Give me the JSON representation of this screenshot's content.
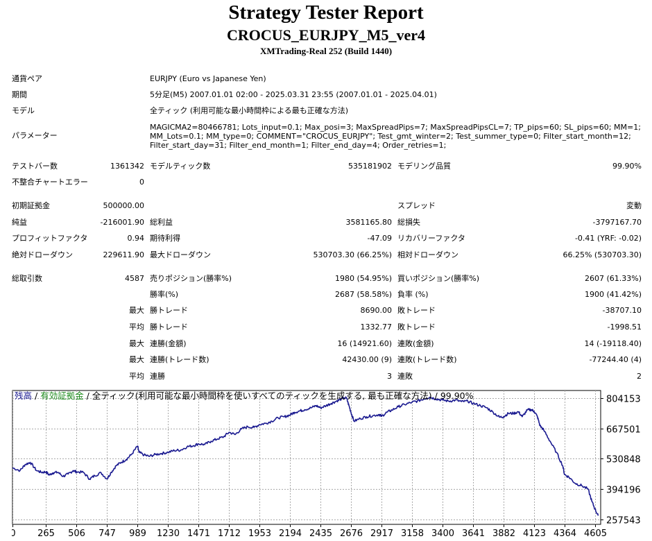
{
  "header": {
    "title": "Strategy Tester Report",
    "subtitle": "CROCUS_EURJPY_M5_ver4",
    "server": "XMTrading-Real 252 (Build 1440)"
  },
  "info": {
    "symbol_label": "通貨ペア",
    "symbol_value": "EURJPY (Euro vs Japanese Yen)",
    "period_label": "期間",
    "period_value": "5分足(M5) 2007.01.01 02:00 - 2025.03.31 23:55 (2007.01.01 - 2025.04.01)",
    "model_label": "モデル",
    "model_value": "全ティック (利用可能な最小時間枠による最も正確な方法)",
    "params_label": "パラメーター",
    "params_value": "MAGICMA2=80466781; Lots_input=0.1; Max_posi=3; MaxSpreadPips=7; MaxSpreadPipsCL=7; TP_pips=60; SL_pips=60; MM=1; MM_Lots=0.1; MM_type=0; COMMENT=\"CROCUS_EURJPY\"; Test_gmt_winter=2; Test_summer_type=0; Filter_start_month=12; Filter_start_day=31; Filter_end_month=1; Filter_end_day=4; Order_retries=1;"
  },
  "stats": {
    "bars_label": "テストバー数",
    "bars_value": "1361342",
    "ticks_label": "モデルティック数",
    "ticks_value": "535181902",
    "quality_label": "モデリング品質",
    "quality_value": "99.90%",
    "mismatch_label": "不整合チャートエラー",
    "mismatch_value": "0",
    "deposit_label": "初期証拠金",
    "deposit_value": "500000.00",
    "spread_label": "スプレッド",
    "spread_value": "変動",
    "net_label": "純益",
    "net_value": "-216001.90",
    "gross_profit_label": "総利益",
    "gross_profit_value": "3581165.80",
    "gross_loss_label": "総損失",
    "gross_loss_value": "-3797167.70",
    "pf_label": "プロフィットファクタ",
    "pf_value": "0.94",
    "payoff_label": "期待利得",
    "payoff_value": "-47.09",
    "recovery_label": "リカバリーファクタ",
    "recovery_value": "-0.41 (YRF: -0.02)",
    "abs_dd_label": "絶対ドローダウン",
    "abs_dd_value": "229611.90",
    "max_dd_label": "最大ドローダウン",
    "max_dd_value": "530703.30 (66.25%)",
    "rel_dd_label": "相対ドローダウン",
    "rel_dd_value": "66.25% (530703.30)",
    "trades_label": "総取引数",
    "trades_value": "4587",
    "short_label": "売りポジション(勝率%)",
    "short_value": "1980 (54.95%)",
    "long_label": "買いポジション(勝率%)",
    "long_value": "2607 (61.33%)",
    "win_rate_label": "勝率(%)",
    "win_rate_value": "2687 (58.58%)",
    "loss_rate_label": "負率 (%)",
    "loss_rate_value": "1900 (41.42%)",
    "max_word": "最大",
    "avg_word": "平均",
    "largest_win_label": "勝トレード",
    "largest_win_value": "8690.00",
    "largest_loss_label": "敗トレード",
    "largest_loss_value": "-38707.10",
    "avg_win_label": "勝トレード",
    "avg_win_value": "1332.77",
    "avg_loss_label": "敗トレード",
    "avg_loss_value": "-1998.51",
    "max_consec_wins_label": "連勝(金額)",
    "max_consec_wins_value": "16 (14921.60)",
    "max_consec_losses_label": "連敗(金額)",
    "max_consec_losses_value": "14 (-19118.40)",
    "max_consec_profit_label": "連勝(トレード数)",
    "max_consec_profit_value": "42430.00 (9)",
    "max_consec_loss_label": "連敗(トレード数)",
    "max_consec_loss_value": "-77244.40 (4)",
    "avg_consec_wins_label": "連勝",
    "avg_consec_wins_value": "3",
    "avg_consec_losses_label": "連敗",
    "avg_consec_losses_value": "2"
  },
  "legend": {
    "balance": "残高",
    "sep1": " / ",
    "equity": "有効証拠金",
    "rest": " / 全ティック(利用可能な最小時間枠を使いすべてのティックを生成する, 最も正確な方法) / 99.90%"
  },
  "colors": {
    "balance_line": "#1a1a90",
    "equity_legend": "#1e8c1e",
    "grid": "#a9a9a9"
  },
  "chart_data": {
    "type": "line",
    "title": "",
    "xlabel": "",
    "ylabel": "",
    "xlim": [
      0,
      4650
    ],
    "ylim": [
      236000,
      838000
    ],
    "x_ticks": [
      0,
      265,
      506,
      747,
      989,
      1230,
      1471,
      1712,
      1953,
      2194,
      2435,
      2676,
      2917,
      3158,
      3400,
      3641,
      3882,
      4123,
      4364,
      4605
    ],
    "y_ticks": [
      257543,
      394196,
      530848,
      667501,
      804153
    ],
    "series": [
      {
        "x": [
          0,
          60,
          100,
          140,
          190,
          230,
          265,
          290,
          320,
          360,
          400,
          440,
          480,
          506,
          560,
          610,
          650,
          700,
          747,
          780,
          820,
          860,
          900,
          940,
          989,
          1000,
          1040,
          1080,
          1130,
          1180,
          1230,
          1280,
          1330,
          1380,
          1430,
          1471,
          1520,
          1570,
          1620,
          1670,
          1712,
          1760,
          1810,
          1860,
          1910,
          1953,
          2000,
          2050,
          2100,
          2150,
          2194,
          2230,
          2270,
          2310,
          2360,
          2400,
          2435,
          2480,
          2520,
          2560,
          2600,
          2640,
          2660,
          2676,
          2700,
          2750,
          2800,
          2850,
          2900,
          2917,
          2960,
          3000,
          3050,
          3100,
          3158,
          3200,
          3250,
          3300,
          3350,
          3400,
          3450,
          3500,
          3550,
          3600,
          3641,
          3700,
          3750,
          3800,
          3850,
          3882,
          3920,
          3960,
          4000,
          4030,
          4070,
          4100,
          4123,
          4150,
          4170,
          4200,
          4250,
          4300,
          4350,
          4364,
          4400,
          4450,
          4500,
          4550,
          4580,
          4605,
          4630
        ],
        "y": [
          490000,
          478000,
          505000,
          515000,
          478000,
          470000,
          472000,
          458000,
          468000,
          470000,
          452000,
          462000,
          478000,
          472000,
          470000,
          440000,
          455000,
          468000,
          440000,
          470000,
          500000,
          515000,
          528000,
          550000,
          588000,
          560000,
          548000,
          542000,
          550000,
          555000,
          560000,
          568000,
          570000,
          585000,
          590000,
          598000,
          595000,
          610000,
          620000,
          630000,
          650000,
          640000,
          665000,
          675000,
          672000,
          685000,
          690000,
          700000,
          715000,
          720000,
          728000,
          740000,
          746000,
          752000,
          760000,
          770000,
          760000,
          770000,
          780000,
          790000,
          800000,
          805000,
          770000,
          740000,
          700000,
          712000,
          720000,
          725000,
          730000,
          722000,
          740000,
          750000,
          765000,
          775000,
          785000,
          790000,
          800000,
          808000,
          800000,
          795000,
          790000,
          795000,
          788000,
          790000,
          780000,
          770000,
          760000,
          740000,
          718000,
          720000,
          735000,
          735000,
          742000,
          720000,
          750000,
          752000,
          745000,
          720000,
          680000,
          660000,
          610000,
          560000,
          500000,
          460000,
          448000,
          420000,
          410000,
          395000,
          340000,
          305000,
          275000
        ]
      }
    ]
  }
}
